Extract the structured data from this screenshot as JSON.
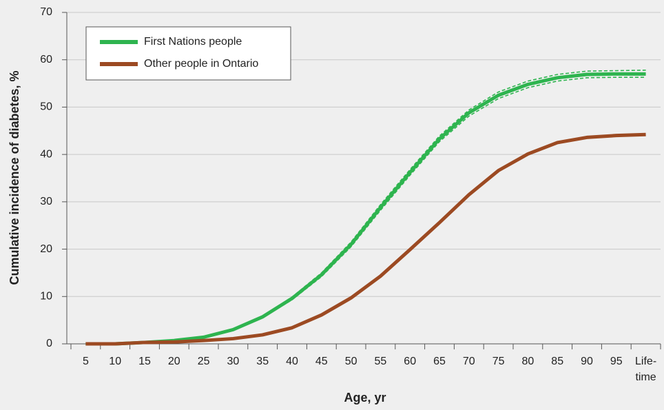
{
  "chart_data": {
    "type": "line",
    "x_label": "Age, yr",
    "y_label": "Cumulative incidence of diabetes, %",
    "categories": [
      "5",
      "10",
      "15",
      "20",
      "25",
      "30",
      "35",
      "40",
      "45",
      "50",
      "55",
      "60",
      "65",
      "70",
      "75",
      "80",
      "85",
      "90",
      "95",
      "Life-\ntime"
    ],
    "series": [
      {
        "name": "First Nations people",
        "color": "#2eb44f",
        "values": [
          0,
          0,
          0.3,
          0.7,
          1.4,
          3.0,
          5.7,
          9.6,
          14.6,
          21.0,
          28.8,
          36.2,
          43.3,
          48.8,
          52.5,
          54.8,
          56.2,
          56.9,
          57.0,
          57.0
        ],
        "upper": [
          0,
          0,
          0.3,
          0.8,
          1.5,
          3.1,
          5.9,
          9.9,
          15.0,
          21.5,
          29.4,
          36.8,
          43.9,
          49.4,
          53.2,
          55.5,
          56.9,
          57.6,
          57.7,
          57.8
        ],
        "lower": [
          0,
          0,
          0.2,
          0.6,
          1.3,
          2.9,
          5.5,
          9.3,
          14.2,
          20.5,
          28.2,
          35.6,
          42.7,
          48.1,
          51.8,
          54.1,
          55.5,
          56.2,
          56.3,
          56.3
        ]
      },
      {
        "name": "Other people in Ontario",
        "color": "#9c4a22",
        "values": [
          0,
          0,
          0.3,
          0.4,
          0.7,
          1.1,
          1.9,
          3.4,
          6.1,
          9.7,
          14.3,
          19.9,
          25.6,
          31.5,
          36.6,
          40.1,
          42.5,
          43.6,
          44.0,
          44.2
        ]
      }
    ],
    "ylim": [
      0,
      70
    ],
    "yticks": [
      0,
      10,
      20,
      30,
      40,
      50,
      60,
      70
    ],
    "grid": true,
    "legend": "top-left"
  }
}
